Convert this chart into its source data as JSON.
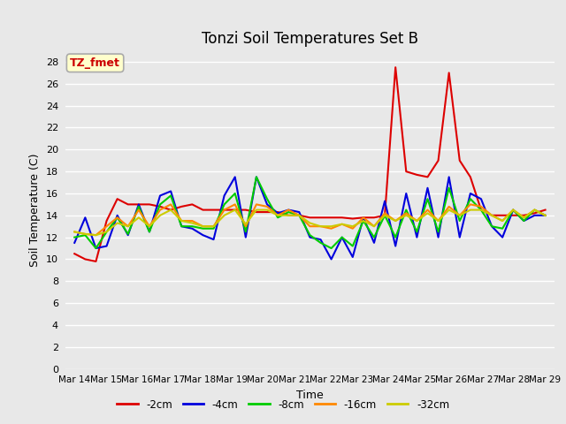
{
  "title": "Tonzi Soil Temperatures Set B",
  "xlabel": "Time",
  "ylabel": "Soil Temperature (C)",
  "annotation": "TZ_fmet",
  "annotation_color": "#cc0000",
  "annotation_bg": "#ffffcc",
  "annotation_border": "#aaaaaa",
  "background_color": "#e8e8e8",
  "plot_bg": "#e8e8e8",
  "ylim": [
    0,
    29
  ],
  "yticks": [
    0,
    2,
    4,
    6,
    8,
    10,
    12,
    14,
    16,
    18,
    20,
    22,
    24,
    26,
    28
  ],
  "x_labels": [
    "Mar 14",
    "Mar 15",
    "Mar 16",
    "Mar 17",
    "Mar 18",
    "Mar 19",
    "Mar 20",
    "Mar 21",
    "Mar 22",
    "Mar 23",
    "Mar 24",
    "Mar 25",
    "Mar 26",
    "Mar 27",
    "Mar 28",
    "Mar 29"
  ],
  "series": {
    "-2cm": {
      "color": "#dd0000",
      "linewidth": 1.5,
      "values": [
        10.5,
        10.0,
        9.8,
        13.5,
        15.5,
        15.0,
        15.0,
        15.0,
        14.8,
        14.5,
        14.8,
        15.0,
        14.5,
        14.5,
        14.5,
        14.5,
        14.5,
        14.3,
        14.3,
        14.3,
        14.0,
        14.0,
        13.8,
        13.8,
        13.8,
        13.8,
        13.7,
        13.8,
        13.8,
        14.0,
        27.5,
        18.0,
        17.7,
        17.5,
        19.0,
        27.0,
        19.0,
        17.5,
        14.5,
        14.0,
        14.0,
        14.0,
        14.0,
        14.2,
        14.5
      ]
    },
    "-4cm": {
      "color": "#0000dd",
      "linewidth": 1.5,
      "values": [
        11.5,
        13.8,
        11.0,
        11.2,
        14.0,
        12.2,
        15.0,
        12.5,
        15.8,
        16.2,
        13.0,
        12.8,
        12.2,
        11.8,
        15.8,
        17.5,
        12.0,
        17.5,
        15.0,
        14.2,
        14.5,
        14.3,
        12.0,
        11.8,
        10.0,
        12.0,
        10.2,
        13.8,
        11.5,
        15.3,
        11.2,
        16.0,
        12.0,
        16.5,
        12.0,
        17.5,
        12.0,
        16.0,
        15.5,
        13.0,
        12.0,
        14.5,
        13.5,
        14.0,
        14.0
      ]
    },
    "-8cm": {
      "color": "#00cc00",
      "linewidth": 1.5,
      "values": [
        12.0,
        12.2,
        11.0,
        12.5,
        13.8,
        12.3,
        14.8,
        12.5,
        15.0,
        15.8,
        13.0,
        13.0,
        12.8,
        12.8,
        15.0,
        16.0,
        12.5,
        17.5,
        15.5,
        13.8,
        14.3,
        14.0,
        12.2,
        11.5,
        11.0,
        12.0,
        11.2,
        13.5,
        12.0,
        14.0,
        12.0,
        14.5,
        12.5,
        15.5,
        12.5,
        16.5,
        13.5,
        15.5,
        14.5,
        13.0,
        12.8,
        14.5,
        13.5,
        14.5,
        14.0
      ]
    },
    "-16cm": {
      "color": "#ff8800",
      "linewidth": 1.5,
      "values": [
        12.5,
        12.3,
        12.2,
        13.0,
        13.8,
        13.0,
        14.5,
        13.0,
        14.5,
        15.0,
        13.5,
        13.5,
        13.0,
        13.0,
        14.5,
        15.0,
        13.0,
        15.0,
        14.8,
        14.0,
        14.5,
        14.0,
        13.0,
        13.0,
        12.8,
        13.2,
        12.8,
        13.8,
        13.0,
        14.2,
        13.5,
        14.2,
        13.5,
        14.5,
        13.5,
        14.8,
        14.0,
        15.0,
        14.8,
        14.0,
        13.5,
        14.5,
        13.8,
        14.5,
        14.0
      ]
    },
    "-32cm": {
      "color": "#cccc00",
      "linewidth": 1.5,
      "values": [
        12.5,
        12.3,
        12.2,
        12.5,
        13.3,
        13.0,
        13.8,
        13.0,
        14.0,
        14.5,
        13.5,
        13.3,
        13.0,
        13.0,
        14.0,
        14.5,
        13.2,
        14.5,
        14.5,
        14.0,
        14.0,
        14.0,
        13.3,
        13.0,
        13.0,
        13.2,
        13.0,
        13.5,
        13.0,
        14.0,
        13.5,
        14.0,
        13.5,
        14.2,
        13.5,
        14.5,
        14.0,
        14.5,
        14.5,
        14.0,
        13.5,
        14.5,
        13.8,
        14.5,
        14.0
      ]
    }
  },
  "legend_order": [
    "-2cm",
    "-4cm",
    "-8cm",
    "-16cm",
    "-32cm"
  ],
  "legend_colors": [
    "#dd0000",
    "#0000dd",
    "#00cc00",
    "#ff8800",
    "#cccc00"
  ]
}
